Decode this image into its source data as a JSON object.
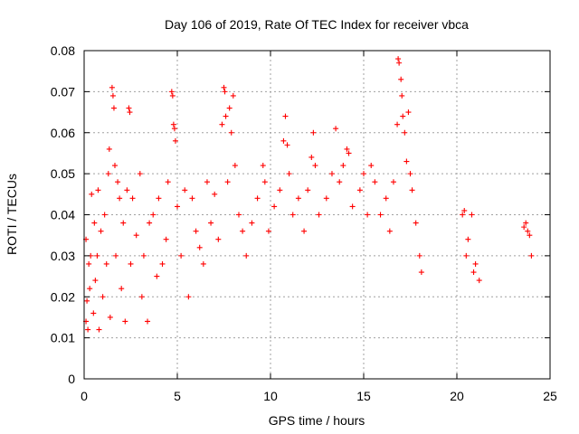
{
  "chart_data": {
    "type": "scatter",
    "title": "Day 106 of 2019, Rate Of TEC Index for receiver vbca",
    "xlabel": "GPS time / hours",
    "ylabel": "ROTI / TECUs",
    "xlim": [
      0,
      25
    ],
    "ylim": [
      0,
      0.08
    ],
    "x_ticks": [
      "0",
      "5",
      "10",
      "15",
      "20",
      "25"
    ],
    "y_ticks": [
      "0",
      "0.01",
      "0.02",
      "0.03",
      "0.04",
      "0.05",
      "0.06",
      "0.07",
      "0.08"
    ],
    "grid": true,
    "marker": "+",
    "color": "#ff0000",
    "series": [
      {
        "points": [
          [
            0.1,
            0.014
          ],
          [
            0.1,
            0.034
          ],
          [
            0.15,
            0.019
          ],
          [
            0.2,
            0.012
          ],
          [
            0.25,
            0.028
          ],
          [
            0.3,
            0.022
          ],
          [
            0.35,
            0.03
          ],
          [
            0.4,
            0.045
          ],
          [
            0.5,
            0.016
          ],
          [
            0.55,
            0.038
          ],
          [
            0.6,
            0.024
          ],
          [
            0.7,
            0.03
          ],
          [
            0.75,
            0.046
          ],
          [
            0.8,
            0.012
          ],
          [
            0.9,
            0.036
          ],
          [
            1.0,
            0.02
          ],
          [
            1.1,
            0.04
          ],
          [
            1.2,
            0.028
          ],
          [
            1.3,
            0.05
          ],
          [
            1.35,
            0.056
          ],
          [
            1.4,
            0.015
          ],
          [
            1.5,
            0.071
          ],
          [
            1.55,
            0.069
          ],
          [
            1.6,
            0.066
          ],
          [
            1.65,
            0.052
          ],
          [
            1.7,
            0.03
          ],
          [
            1.8,
            0.048
          ],
          [
            1.9,
            0.044
          ],
          [
            2.0,
            0.022
          ],
          [
            2.1,
            0.038
          ],
          [
            2.2,
            0.014
          ],
          [
            2.3,
            0.046
          ],
          [
            2.4,
            0.066
          ],
          [
            2.45,
            0.065
          ],
          [
            2.5,
            0.028
          ],
          [
            2.6,
            0.044
          ],
          [
            2.8,
            0.035
          ],
          [
            3.0,
            0.05
          ],
          [
            3.1,
            0.02
          ],
          [
            3.2,
            0.03
          ],
          [
            3.4,
            0.014
          ],
          [
            3.5,
            0.038
          ],
          [
            3.7,
            0.04
          ],
          [
            3.9,
            0.025
          ],
          [
            4.0,
            0.044
          ],
          [
            4.2,
            0.028
          ],
          [
            4.4,
            0.034
          ],
          [
            4.5,
            0.048
          ],
          [
            4.7,
            0.07
          ],
          [
            4.75,
            0.069
          ],
          [
            4.8,
            0.062
          ],
          [
            4.85,
            0.061
          ],
          [
            4.9,
            0.058
          ],
          [
            5.0,
            0.042
          ],
          [
            5.2,
            0.03
          ],
          [
            5.4,
            0.046
          ],
          [
            5.6,
            0.02
          ],
          [
            5.8,
            0.044
          ],
          [
            6.0,
            0.036
          ],
          [
            6.2,
            0.032
          ],
          [
            6.4,
            0.028
          ],
          [
            6.6,
            0.048
          ],
          [
            6.8,
            0.038
          ],
          [
            7.0,
            0.045
          ],
          [
            7.2,
            0.034
          ],
          [
            7.4,
            0.062
          ],
          [
            7.5,
            0.071
          ],
          [
            7.55,
            0.07
          ],
          [
            7.6,
            0.064
          ],
          [
            7.7,
            0.048
          ],
          [
            7.8,
            0.066
          ],
          [
            7.9,
            0.06
          ],
          [
            8.0,
            0.069
          ],
          [
            8.1,
            0.052
          ],
          [
            8.3,
            0.04
          ],
          [
            8.5,
            0.036
          ],
          [
            8.7,
            0.03
          ],
          [
            9.0,
            0.038
          ],
          [
            9.3,
            0.044
          ],
          [
            9.6,
            0.052
          ],
          [
            9.7,
            0.048
          ],
          [
            9.9,
            0.036
          ],
          [
            10.2,
            0.042
          ],
          [
            10.5,
            0.046
          ],
          [
            10.7,
            0.058
          ],
          [
            10.8,
            0.064
          ],
          [
            10.9,
            0.057
          ],
          [
            11.0,
            0.05
          ],
          [
            11.2,
            0.04
          ],
          [
            11.5,
            0.044
          ],
          [
            11.8,
            0.036
          ],
          [
            12.0,
            0.046
          ],
          [
            12.2,
            0.054
          ],
          [
            12.3,
            0.06
          ],
          [
            12.4,
            0.052
          ],
          [
            12.6,
            0.04
          ],
          [
            13.0,
            0.044
          ],
          [
            13.3,
            0.05
          ],
          [
            13.5,
            0.061
          ],
          [
            13.7,
            0.048
          ],
          [
            13.9,
            0.052
          ],
          [
            14.1,
            0.056
          ],
          [
            14.2,
            0.055
          ],
          [
            14.4,
            0.042
          ],
          [
            14.8,
            0.046
          ],
          [
            15.0,
            0.05
          ],
          [
            15.2,
            0.04
          ],
          [
            15.4,
            0.052
          ],
          [
            15.6,
            0.048
          ],
          [
            15.9,
            0.04
          ],
          [
            16.2,
            0.044
          ],
          [
            16.4,
            0.036
          ],
          [
            16.6,
            0.048
          ],
          [
            16.8,
            0.062
          ],
          [
            16.85,
            0.078
          ],
          [
            16.9,
            0.077
          ],
          [
            17.0,
            0.073
          ],
          [
            17.05,
            0.069
          ],
          [
            17.1,
            0.064
          ],
          [
            17.2,
            0.06
          ],
          [
            17.3,
            0.053
          ],
          [
            17.4,
            0.065
          ],
          [
            17.5,
            0.05
          ],
          [
            17.6,
            0.046
          ],
          [
            17.8,
            0.038
          ],
          [
            18.0,
            0.03
          ],
          [
            18.1,
            0.026
          ],
          [
            20.3,
            0.04
          ],
          [
            20.4,
            0.041
          ],
          [
            20.5,
            0.03
          ],
          [
            20.6,
            0.034
          ],
          [
            20.8,
            0.04
          ],
          [
            20.9,
            0.026
          ],
          [
            21.0,
            0.028
          ],
          [
            21.2,
            0.024
          ],
          [
            23.6,
            0.037
          ],
          [
            23.7,
            0.038
          ],
          [
            23.8,
            0.036
          ],
          [
            23.9,
            0.035
          ],
          [
            24.0,
            0.03
          ]
        ]
      }
    ]
  }
}
